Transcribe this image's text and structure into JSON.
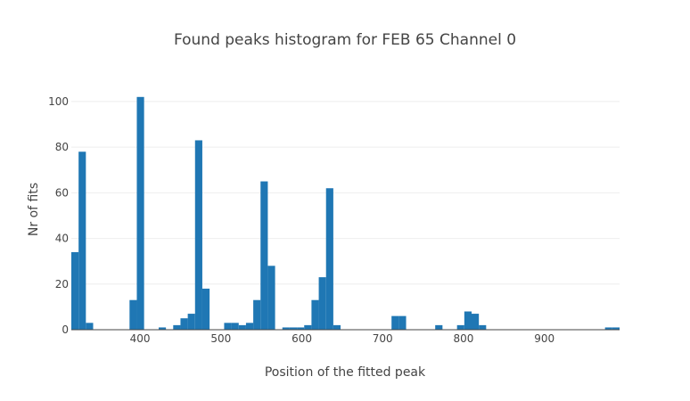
{
  "chart_data": {
    "type": "bar",
    "title": "Found peaks histogram for FEB 65 Channel 0",
    "xlabel": "Position of the fitted peak",
    "ylabel": "Nr of fits",
    "xlim": [
      315,
      993
    ],
    "ylim": [
      0,
      107
    ],
    "xticks": [
      400,
      500,
      600,
      700,
      800,
      900
    ],
    "yticks": [
      0,
      20,
      40,
      60,
      80,
      100
    ],
    "grid": true,
    "color": "#1f77b4",
    "bin_width": 9,
    "bins": [
      {
        "x0": 315,
        "count": 34
      },
      {
        "x0": 324,
        "count": 78
      },
      {
        "x0": 333,
        "count": 3
      },
      {
        "x0": 387,
        "count": 13
      },
      {
        "x0": 396,
        "count": 102
      },
      {
        "x0": 423,
        "count": 1
      },
      {
        "x0": 441,
        "count": 2
      },
      {
        "x0": 450,
        "count": 5
      },
      {
        "x0": 459,
        "count": 7
      },
      {
        "x0": 468,
        "count": 83
      },
      {
        "x0": 477,
        "count": 18
      },
      {
        "x0": 504,
        "count": 3
      },
      {
        "x0": 513,
        "count": 3
      },
      {
        "x0": 522,
        "count": 2
      },
      {
        "x0": 531,
        "count": 3
      },
      {
        "x0": 540,
        "count": 13
      },
      {
        "x0": 549,
        "count": 65
      },
      {
        "x0": 558,
        "count": 28
      },
      {
        "x0": 576,
        "count": 1
      },
      {
        "x0": 585,
        "count": 1
      },
      {
        "x0": 594,
        "count": 1
      },
      {
        "x0": 603,
        "count": 2
      },
      {
        "x0": 612,
        "count": 13
      },
      {
        "x0": 621,
        "count": 23
      },
      {
        "x0": 630,
        "count": 62
      },
      {
        "x0": 639,
        "count": 2
      },
      {
        "x0": 711,
        "count": 6
      },
      {
        "x0": 720,
        "count": 6
      },
      {
        "x0": 765,
        "count": 2
      },
      {
        "x0": 792,
        "count": 2
      },
      {
        "x0": 801,
        "count": 8
      },
      {
        "x0": 810,
        "count": 7
      },
      {
        "x0": 819,
        "count": 2
      },
      {
        "x0": 975,
        "count": 1
      },
      {
        "x0": 984,
        "count": 1
      }
    ]
  }
}
